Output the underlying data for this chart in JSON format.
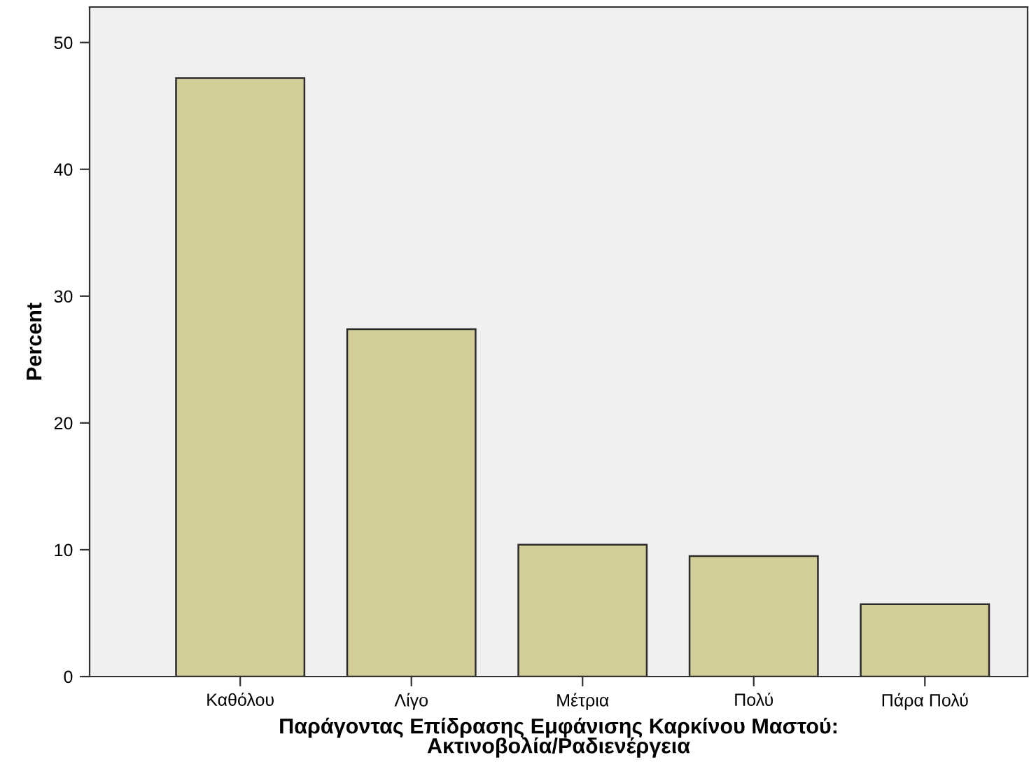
{
  "chart_data": {
    "type": "bar",
    "xlabel": "Παράγοντας Επίδρασης Εμφάνισης Καρκίνου Μαστού:\nΑκτινοβολία/Ραδιενέργεια",
    "ylabel": "Percent",
    "categories": [
      "Καθόλου",
      "Λίγο",
      "Μέτρια",
      "Πολύ",
      "Πάρα Πολύ"
    ],
    "values": [
      47.2,
      27.4,
      10.4,
      9.5,
      5.7
    ],
    "color": "#d3ce97",
    "ylim": [
      0,
      52.8
    ],
    "yticks": [
      0,
      10,
      20,
      30,
      40,
      50
    ],
    "grid": false
  }
}
